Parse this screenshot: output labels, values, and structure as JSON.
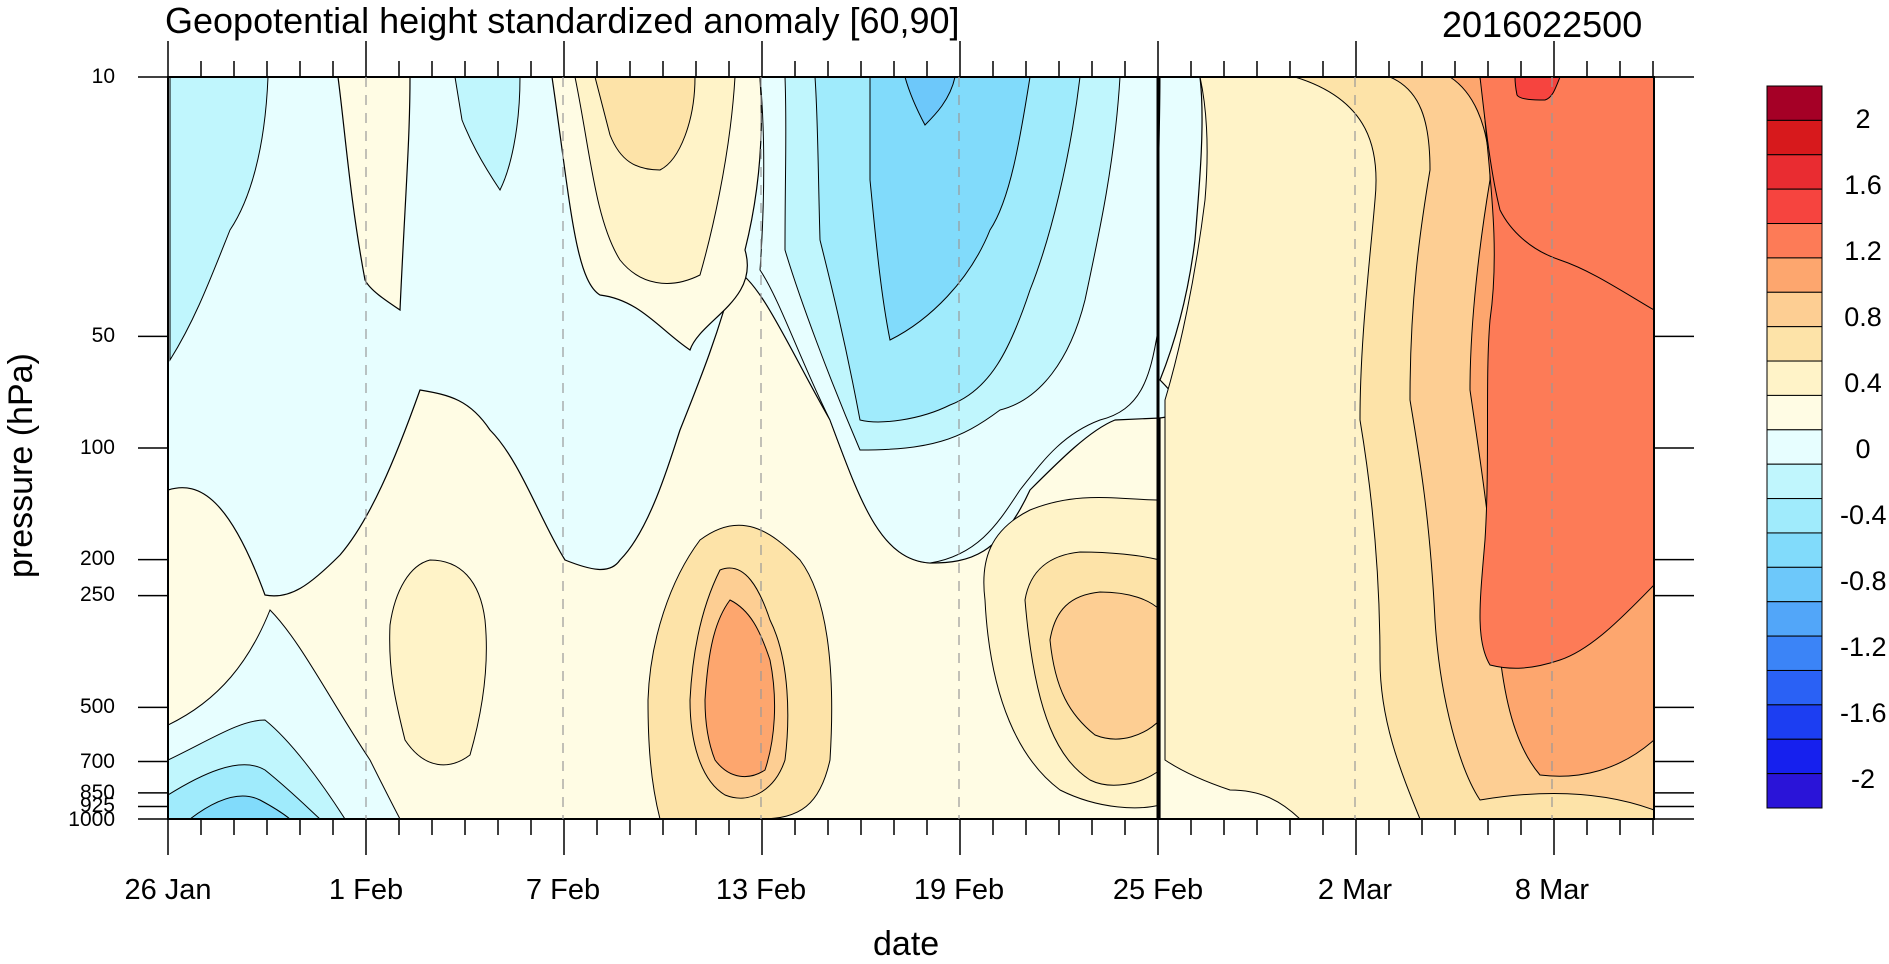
{
  "chart_data": {
    "type": "heatmap",
    "title": "Geopotential height standardized anomaly [60,90]",
    "stamp": "2016022500",
    "xlabel": "date",
    "ylabel": "pressure (hPa)",
    "x_ticks": [
      "26 Jan",
      "1 Feb",
      "7 Feb",
      "13 Feb",
      "19 Feb",
      "25 Feb",
      "2 Mar",
      "8 Mar"
    ],
    "y_ticks": [
      "10",
      "50",
      "100",
      "200",
      "250",
      "500",
      "700",
      "850",
      "925",
      "1000"
    ],
    "y_scale": "log",
    "marker_date": "25 Feb",
    "colorbar": {
      "labels": [
        "2",
        "1.6",
        "1.2",
        "0.8",
        "0.4",
        "0",
        "-0.4",
        "-0.8",
        "-1.2",
        "-1.6",
        "-2"
      ],
      "colors": [
        "#a50026",
        "#d7191c",
        "#e92c31",
        "#f6443f",
        "#fd7b57",
        "#fda66e",
        "#fdce93",
        "#fde3a8",
        "#fff3c8",
        "#fffce4",
        "#e7feff",
        "#c0f6fd",
        "#a0ebfc",
        "#81dbfb",
        "#6dc8fa",
        "#52a6f9",
        "#3b84f7",
        "#2a61f5",
        "#1c3ef2",
        "#1620ee",
        "#2a14d8"
      ]
    },
    "colors": {
      "pos1": "#fffce4",
      "pos2": "#fff3c8",
      "pos3": "#fde3a8",
      "pos4": "#fdce93",
      "pos5": "#fda66e",
      "pos6": "#fd7b57",
      "pos7": "#f6443f",
      "neg1": "#e7feff",
      "neg2": "#c0f6fd",
      "neg3": "#a0ebfc",
      "neg4": "#81dbfb",
      "neg5": "#6dc8fa"
    }
  }
}
